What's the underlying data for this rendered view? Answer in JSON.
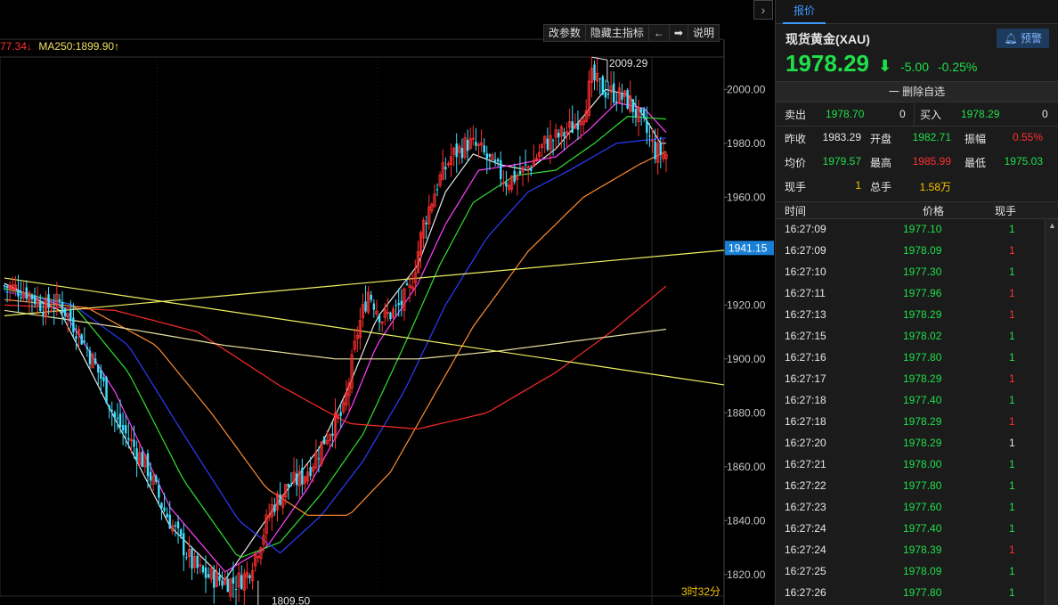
{
  "header": {
    "collapse_icon": "chevron-right-icon",
    "toolbar": [
      {
        "label": "改参数",
        "name": "edit-params-button"
      },
      {
        "label": "隐藏主指标",
        "name": "hide-main-indicator-button"
      },
      {
        "label": "←",
        "name": "prev-button"
      },
      {
        "label": "➡",
        "name": "next-button"
      },
      {
        "label": "说明",
        "name": "help-button"
      }
    ],
    "ma_legend": {
      "partial": "77.34↓",
      "ma250": "MA250:1899.90↑"
    }
  },
  "chart_data": {
    "type": "candlestick",
    "y_ticks": [
      "2000.00",
      "1980.00",
      "1960.00",
      "1940.00",
      "1920.00",
      "1900.00",
      "1880.00",
      "1860.00",
      "1840.00",
      "1820.00"
    ],
    "y_range": [
      1812,
      2012
    ],
    "current_price_label": "1941.15",
    "current_price": 1941.15,
    "high_label": "2009.29",
    "low_label": "1809.50",
    "time_label": "3时32分",
    "n_candles": 250,
    "close_path": [
      [
        0,
        1927
      ],
      [
        8,
        1925
      ],
      [
        15,
        1919
      ],
      [
        20,
        1921
      ],
      [
        28,
        1908
      ],
      [
        35,
        1893
      ],
      [
        40,
        1878
      ],
      [
        46,
        1869
      ],
      [
        52,
        1859
      ],
      [
        57,
        1846
      ],
      [
        63,
        1834
      ],
      [
        68,
        1824
      ],
      [
        72,
        1820
      ],
      [
        78,
        1818
      ],
      [
        84,
        1817
      ],
      [
        88,
        1820
      ],
      [
        92,
        1830
      ],
      [
        97,
        1845
      ],
      [
        103,
        1853
      ],
      [
        108,
        1856
      ],
      [
        112,
        1862
      ],
      [
        118,
        1874
      ],
      [
        123,
        1880
      ],
      [
        128,
        1910
      ],
      [
        132,
        1925
      ],
      [
        137,
        1915
      ],
      [
        142,
        1918
      ],
      [
        147,
        1925
      ],
      [
        152,
        1950
      ],
      [
        157,
        1965
      ],
      [
        162,
        1975
      ],
      [
        168,
        1980
      ],
      [
        172,
        1978
      ],
      [
        177,
        1972
      ],
      [
        182,
        1966
      ],
      [
        186,
        1968
      ],
      [
        191,
        1972
      ],
      [
        196,
        1980
      ],
      [
        202,
        1983
      ],
      [
        206,
        1986
      ],
      [
        210,
        1992
      ],
      [
        213,
        2004
      ],
      [
        217,
        2000
      ],
      [
        222,
        1998
      ],
      [
        227,
        1995
      ],
      [
        232,
        1986
      ],
      [
        236,
        1977
      ],
      [
        240,
        1976
      ]
    ],
    "ma_series": [
      {
        "color": "#e8e8e8",
        "offsets": [
          [
            0,
            0.2
          ],
          [
            5,
            0.3
          ],
          [
            10,
            0.5
          ],
          [
            15,
            0.3
          ]
        ]
      },
      {
        "color": "#ff40ff",
        "offsets": [
          [
            0,
            0.5
          ],
          [
            5,
            0.6
          ],
          [
            10,
            0.8
          ],
          [
            15,
            0.6
          ]
        ]
      },
      {
        "color": "#30e030",
        "offsets": [
          [
            0,
            0.9
          ],
          [
            5,
            1.0
          ],
          [
            10,
            1.1
          ],
          [
            15,
            0.9
          ]
        ]
      },
      {
        "color": "#2b3cff",
        "offsets": [
          [
            0,
            1.5
          ],
          [
            5,
            1.6
          ],
          [
            10,
            1.7
          ],
          [
            15,
            1.5
          ]
        ]
      },
      {
        "color": "#ff8c30",
        "offsets": [
          [
            0,
            2.5
          ],
          [
            5,
            2.4
          ],
          [
            10,
            2.3
          ],
          [
            15,
            2.2
          ]
        ]
      },
      {
        "color": "#ff2a2a",
        "offsets": [
          [
            0,
            3.6
          ],
          [
            5,
            3.5
          ],
          [
            10,
            3.4
          ]
        ]
      }
    ],
    "ma_lines": [
      {
        "color": "#e8e8e8",
        "points": [
          [
            0,
            1928
          ],
          [
            20,
            1918
          ],
          [
            40,
            1878
          ],
          [
            60,
            1838
          ],
          [
            80,
            1818
          ],
          [
            100,
            1848
          ],
          [
            115,
            1868
          ],
          [
            125,
            1890
          ],
          [
            135,
            1915
          ],
          [
            150,
            1935
          ],
          [
            160,
            1962
          ],
          [
            170,
            1976
          ],
          [
            180,
            1972
          ],
          [
            190,
            1970
          ],
          [
            200,
            1978
          ],
          [
            210,
            1990
          ],
          [
            218,
            2000
          ],
          [
            226,
            1998
          ],
          [
            232,
            1990
          ],
          [
            238,
            1980
          ]
        ]
      },
      {
        "color": "#ff40ff",
        "points": [
          [
            0,
            1927
          ],
          [
            20,
            1920
          ],
          [
            40,
            1888
          ],
          [
            60,
            1845
          ],
          [
            80,
            1821
          ],
          [
            95,
            1830
          ],
          [
            110,
            1852
          ],
          [
            125,
            1880
          ],
          [
            135,
            1905
          ],
          [
            150,
            1928
          ],
          [
            160,
            1950
          ],
          [
            172,
            1970
          ],
          [
            185,
            1972
          ],
          [
            200,
            1975
          ],
          [
            212,
            1985
          ],
          [
            222,
            1995
          ],
          [
            232,
            1993
          ],
          [
            240,
            1984
          ]
        ]
      },
      {
        "color": "#30e030",
        "points": [
          [
            0,
            1926
          ],
          [
            25,
            1920
          ],
          [
            45,
            1895
          ],
          [
            65,
            1855
          ],
          [
            85,
            1826
          ],
          [
            100,
            1832
          ],
          [
            115,
            1850
          ],
          [
            130,
            1872
          ],
          [
            145,
            1905
          ],
          [
            158,
            1935
          ],
          [
            170,
            1958
          ],
          [
            185,
            1968
          ],
          [
            200,
            1970
          ],
          [
            214,
            1980
          ],
          [
            226,
            1990
          ],
          [
            240,
            1989
          ]
        ]
      },
      {
        "color": "#2b3cff",
        "points": [
          [
            0,
            1925
          ],
          [
            25,
            1920
          ],
          [
            45,
            1905
          ],
          [
            65,
            1872
          ],
          [
            85,
            1840
          ],
          [
            100,
            1828
          ],
          [
            115,
            1842
          ],
          [
            130,
            1862
          ],
          [
            145,
            1888
          ],
          [
            160,
            1920
          ],
          [
            175,
            1945
          ],
          [
            190,
            1962
          ],
          [
            205,
            1970
          ],
          [
            222,
            1980
          ],
          [
            240,
            1982
          ]
        ]
      },
      {
        "color": "#ff8c30",
        "points": [
          [
            0,
            1922
          ],
          [
            30,
            1919
          ],
          [
            55,
            1905
          ],
          [
            75,
            1880
          ],
          [
            95,
            1852
          ],
          [
            110,
            1842
          ],
          [
            125,
            1842
          ],
          [
            140,
            1858
          ],
          [
            155,
            1885
          ],
          [
            170,
            1912
          ],
          [
            190,
            1940
          ],
          [
            210,
            1960
          ],
          [
            230,
            1972
          ],
          [
            240,
            1977
          ]
        ]
      },
      {
        "color": "#ff2a2a",
        "points": [
          [
            0,
            1920
          ],
          [
            40,
            1918
          ],
          [
            70,
            1910
          ],
          [
            100,
            1890
          ],
          [
            125,
            1876
          ],
          [
            150,
            1874
          ],
          [
            175,
            1880
          ],
          [
            200,
            1895
          ],
          [
            220,
            1910
          ],
          [
            240,
            1927
          ]
        ]
      },
      {
        "color": "#e8e0a0",
        "points": [
          [
            0,
            1918
          ],
          [
            40,
            1912
          ],
          [
            80,
            1905
          ],
          [
            120,
            1900
          ],
          [
            150,
            1900
          ],
          [
            180,
            1903
          ],
          [
            210,
            1907
          ],
          [
            240,
            1911
          ]
        ]
      }
    ],
    "trendlines": [
      {
        "color": "#f0f060",
        "from": [
          0,
          1916
        ],
        "to": [
          270,
          1941.15
        ]
      },
      {
        "color": "#f0f060",
        "from": [
          0,
          1930
        ],
        "to": [
          270,
          1889
        ]
      }
    ]
  },
  "panel": {
    "tab": "报价",
    "symbol": "现货黄金(XAU)",
    "alert_label": "预警",
    "price": "1978.29",
    "change": "-5.00",
    "change_pct": "-0.25%",
    "delete_label": "一 删除自选",
    "sell_label": "卖出",
    "sell_price": "1978.70",
    "sell_qty": "0",
    "buy_label": "买入",
    "buy_price": "1978.29",
    "buy_qty": "0",
    "stats": [
      {
        "label": "昨收",
        "value": "1983.29",
        "color": "white"
      },
      {
        "label": "开盘",
        "value": "1982.71",
        "color": "green"
      },
      {
        "label": "振幅",
        "value": "0.55%",
        "color": "red"
      },
      {
        "label": "均价",
        "value": "1979.57",
        "color": "green"
      },
      {
        "label": "最高",
        "value": "1985.99",
        "color": "red"
      },
      {
        "label": "最低",
        "value": "1975.03",
        "color": "green"
      },
      {
        "label": "现手",
        "value": "1",
        "color": "yellow"
      },
      {
        "label": "总手",
        "value": "1.58万",
        "color": "yellow"
      }
    ],
    "ticks_header": {
      "time": "时间",
      "price": "价格",
      "vol": "现手"
    },
    "ticks": [
      {
        "time": "16:27:09",
        "price": "1977.10",
        "vol": "1",
        "vol_color": "green"
      },
      {
        "time": "16:27:09",
        "price": "1978.09",
        "vol": "1",
        "vol_color": "red"
      },
      {
        "time": "16:27:10",
        "price": "1977.30",
        "vol": "1",
        "vol_color": "green"
      },
      {
        "time": "16:27:11",
        "price": "1977.96",
        "vol": "1",
        "vol_color": "red"
      },
      {
        "time": "16:27:13",
        "price": "1978.29",
        "vol": "1",
        "vol_color": "red"
      },
      {
        "time": "16:27:15",
        "price": "1978.02",
        "vol": "1",
        "vol_color": "green"
      },
      {
        "time": "16:27:16",
        "price": "1977.80",
        "vol": "1",
        "vol_color": "green"
      },
      {
        "time": "16:27:17",
        "price": "1978.29",
        "vol": "1",
        "vol_color": "red"
      },
      {
        "time": "16:27:18",
        "price": "1977.40",
        "vol": "1",
        "vol_color": "green"
      },
      {
        "time": "16:27:18",
        "price": "1978.29",
        "vol": "1",
        "vol_color": "red"
      },
      {
        "time": "16:27:20",
        "price": "1978.29",
        "vol": "1",
        "vol_color": "white"
      },
      {
        "time": "16:27:21",
        "price": "1978.00",
        "vol": "1",
        "vol_color": "green"
      },
      {
        "time": "16:27:22",
        "price": "1977.80",
        "vol": "1",
        "vol_color": "green"
      },
      {
        "time": "16:27:23",
        "price": "1977.60",
        "vol": "1",
        "vol_color": "green"
      },
      {
        "time": "16:27:24",
        "price": "1977.40",
        "vol": "1",
        "vol_color": "green"
      },
      {
        "time": "16:27:24",
        "price": "1978.39",
        "vol": "1",
        "vol_color": "red"
      },
      {
        "time": "16:27:25",
        "price": "1978.09",
        "vol": "1",
        "vol_color": "green"
      },
      {
        "time": "16:27:26",
        "price": "1977.80",
        "vol": "1",
        "vol_color": "green"
      }
    ]
  }
}
